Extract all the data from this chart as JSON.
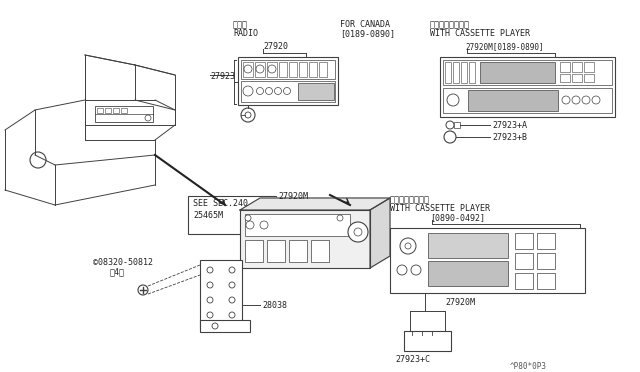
{
  "bg_color": "#ffffff",
  "line_color": "#404040",
  "fig_width": 6.4,
  "fig_height": 3.72,
  "watermark": "^P80*0P3",
  "labels": {
    "radio_jp": "ラジオ",
    "radio_en": "RADIO",
    "canada": "FOR CANADA",
    "canada_date": "[0189-0890]",
    "cassette_jp1": "カセット付ラジオ",
    "cassette_en1": "WITH CASSETTE PLAYER",
    "cassette_jp2": "カセット付ラジオ",
    "cassette_en2": "WITH CASSETTE PLAYER",
    "date2": "[0890-0492]",
    "part_27920": "27920",
    "part_27920M_1": "27920M[0189-0890]",
    "part_27920M_2": "27920M",
    "part_27923": "27923",
    "part_27923A": "27923+A",
    "part_27923B": "27923+B",
    "part_27923C": "27923+C",
    "part_25465M": "25465M",
    "part_28038": "28038",
    "part_08320": "©08320-50812",
    "part_08320_qty": "（4）",
    "see_sec": "SEE SEC.240"
  }
}
